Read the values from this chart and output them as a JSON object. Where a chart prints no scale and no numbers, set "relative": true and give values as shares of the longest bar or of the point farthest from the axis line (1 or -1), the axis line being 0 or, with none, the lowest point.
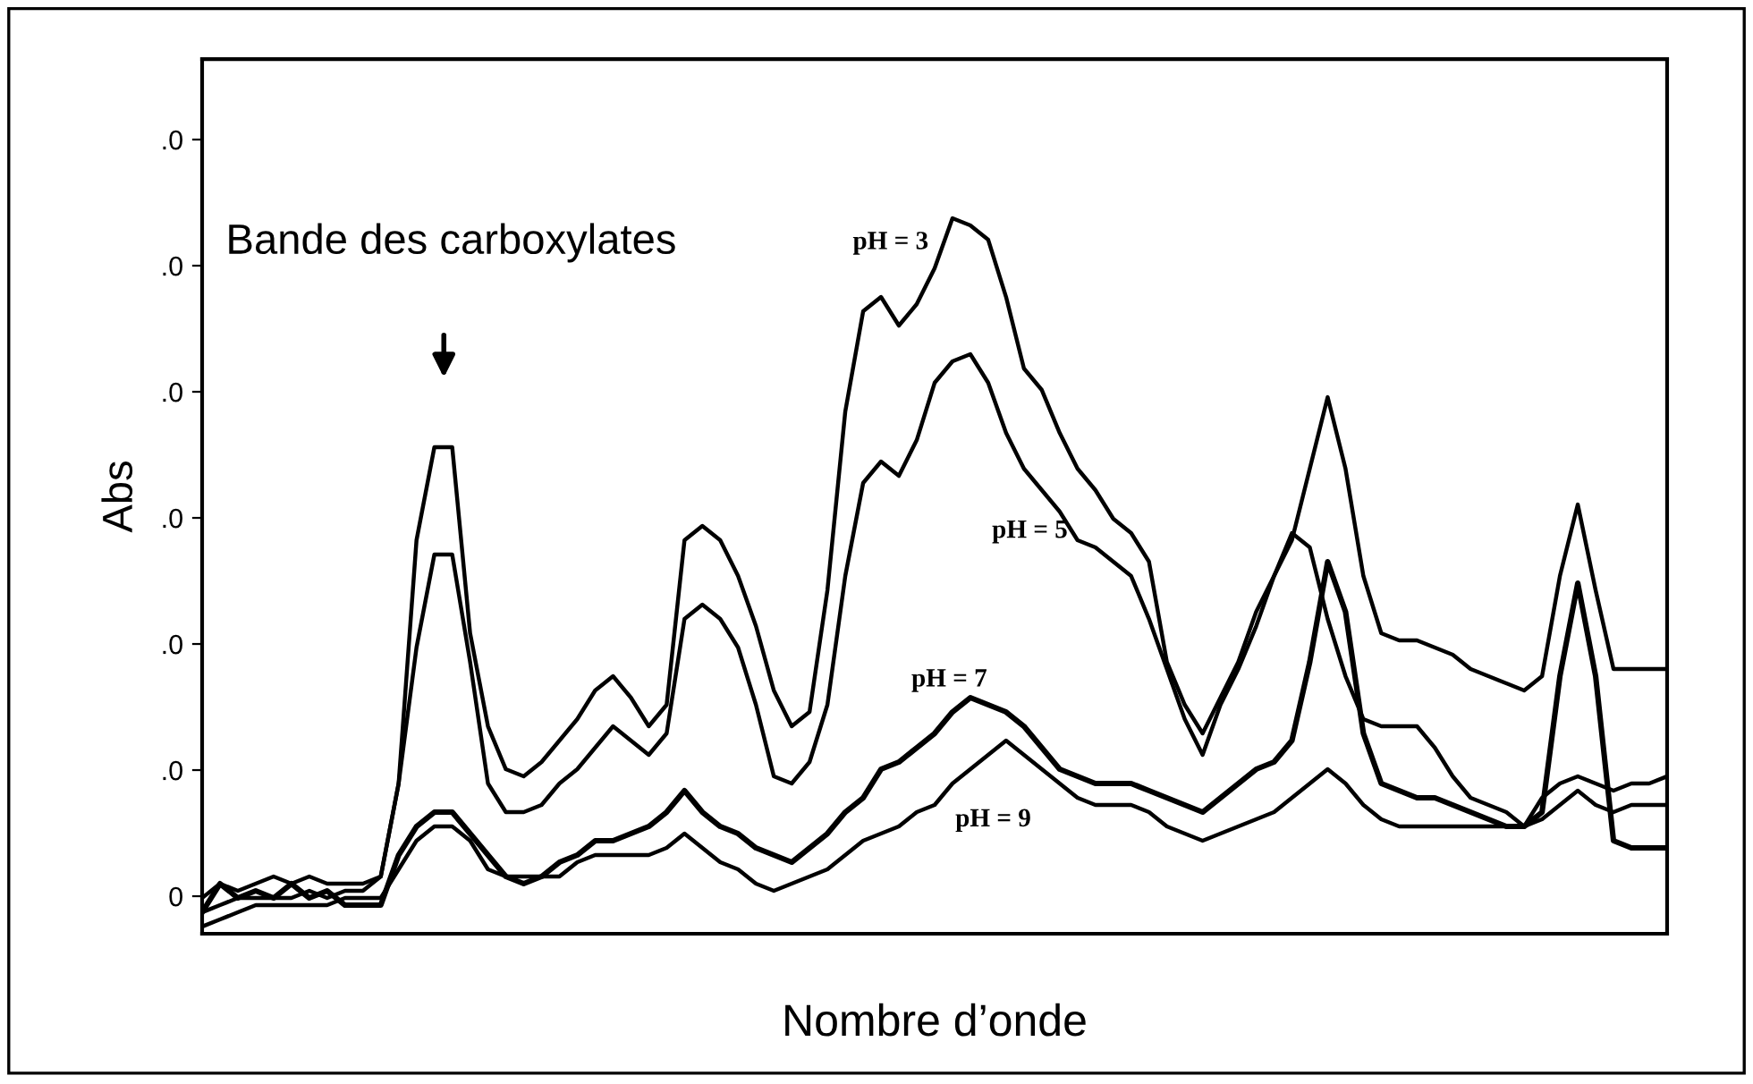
{
  "chart_data": {
    "type": "line",
    "xlabel": "Nombre d’onde",
    "ylabel": "Abs",
    "relative": true,
    "categories": [
      null,
      null,
      null,
      null,
      null,
      null,
      null,
      null,
      null,
      null,
      null,
      null,
      null,
      null,
      null,
      null,
      null,
      null,
      null,
      null,
      null,
      null,
      null,
      null,
      null,
      null,
      null,
      null,
      null,
      null,
      null,
      null,
      null,
      null,
      null,
      null,
      null,
      null,
      null,
      null,
      null,
      null,
      null,
      null,
      null,
      null,
      null,
      null,
      null,
      null,
      null,
      null,
      null,
      null,
      null,
      null,
      null,
      null,
      null,
      null,
      null,
      null,
      null,
      null,
      null,
      null,
      null,
      null,
      null,
      null,
      null,
      null,
      null,
      null,
      null,
      null,
      null,
      null,
      null,
      null,
      null,
      null,
      null
    ],
    "tick_labels": false,
    "line_style": "solid",
    "annotations": [
      "Bande des carboxylates",
      "0",
      ".0",
      ".0",
      ".0",
      ".0",
      ".0",
      ".0"
    ],
    "series": [
      {
        "name": "pH = 3",
        "color": "#000000",
        "values": [
          0.05,
          0.07,
          0.06,
          0.07,
          0.08,
          0.07,
          0.08,
          0.07,
          0.07,
          0.07,
          0.08,
          0.21,
          0.55,
          0.68,
          0.68,
          0.42,
          0.29,
          0.23,
          0.22,
          0.24,
          0.27,
          0.3,
          0.34,
          0.36,
          0.33,
          0.29,
          0.32,
          0.55,
          0.57,
          0.55,
          0.5,
          0.43,
          0.34,
          0.29,
          0.31,
          0.48,
          0.73,
          0.87,
          0.89,
          0.85,
          0.88,
          0.93,
          1.0,
          0.99,
          0.97,
          0.89,
          0.79,
          0.76,
          0.7,
          0.65,
          0.62,
          0.58,
          0.56,
          0.52,
          0.38,
          0.32,
          0.28,
          0.33,
          0.38,
          0.45,
          0.5,
          0.55,
          0.65,
          0.75,
          0.65,
          0.5,
          0.42,
          0.41,
          0.41,
          0.4,
          0.39,
          0.37,
          0.36,
          0.35,
          0.34,
          0.36,
          0.5,
          0.6,
          0.48,
          0.37,
          0.37,
          0.37,
          0.37
        ]
      },
      {
        "name": "pH = 5",
        "color": "#000000",
        "values": [
          0.03,
          0.04,
          0.05,
          0.05,
          0.05,
          0.05,
          0.06,
          0.05,
          0.06,
          0.06,
          0.08,
          0.21,
          0.4,
          0.53,
          0.53,
          0.38,
          0.21,
          0.17,
          0.17,
          0.18,
          0.21,
          0.23,
          0.26,
          0.29,
          0.27,
          0.25,
          0.28,
          0.44,
          0.46,
          0.44,
          0.4,
          0.32,
          0.22,
          0.21,
          0.24,
          0.32,
          0.5,
          0.63,
          0.66,
          0.64,
          0.69,
          0.77,
          0.8,
          0.81,
          0.77,
          0.7,
          0.65,
          0.62,
          0.59,
          0.55,
          0.54,
          0.52,
          0.5,
          0.44,
          0.37,
          0.3,
          0.25,
          0.32,
          0.37,
          0.43,
          0.5,
          0.56,
          0.54,
          0.44,
          0.36,
          0.3,
          0.29,
          0.29,
          0.29,
          0.26,
          0.22,
          0.19,
          0.18,
          0.17,
          0.15,
          0.19,
          0.21,
          0.22,
          0.21,
          0.2,
          0.21,
          0.21,
          0.22
        ]
      },
      {
        "name": "pH = 7",
        "color": "#000000",
        "values": [
          0.03,
          0.07,
          0.05,
          0.06,
          0.05,
          0.07,
          0.05,
          0.06,
          0.04,
          0.04,
          0.04,
          0.11,
          0.15,
          0.17,
          0.17,
          0.14,
          0.11,
          0.08,
          0.07,
          0.08,
          0.1,
          0.11,
          0.13,
          0.13,
          0.14,
          0.15,
          0.17,
          0.2,
          0.17,
          0.15,
          0.14,
          0.12,
          0.11,
          0.1,
          0.12,
          0.14,
          0.17,
          0.19,
          0.23,
          0.24,
          0.26,
          0.28,
          0.31,
          0.33,
          0.32,
          0.31,
          0.29,
          0.26,
          0.23,
          0.22,
          0.21,
          0.21,
          0.21,
          0.2,
          0.19,
          0.18,
          0.17,
          0.19,
          0.21,
          0.23,
          0.24,
          0.27,
          0.38,
          0.52,
          0.45,
          0.28,
          0.21,
          0.2,
          0.19,
          0.19,
          0.18,
          0.17,
          0.16,
          0.15,
          0.15,
          0.17,
          0.36,
          0.49,
          0.36,
          0.13,
          0.12,
          0.12,
          0.12
        ]
      },
      {
        "name": "pH = 9",
        "color": "#000000",
        "values": [
          0.01,
          0.02,
          0.03,
          0.04,
          0.04,
          0.04,
          0.04,
          0.04,
          0.05,
          0.05,
          0.05,
          0.09,
          0.13,
          0.15,
          0.15,
          0.13,
          0.09,
          0.08,
          0.08,
          0.08,
          0.08,
          0.1,
          0.11,
          0.11,
          0.11,
          0.11,
          0.12,
          0.14,
          0.12,
          0.1,
          0.09,
          0.07,
          0.06,
          0.07,
          0.08,
          0.09,
          0.11,
          0.13,
          0.14,
          0.15,
          0.17,
          0.18,
          0.21,
          0.23,
          0.25,
          0.27,
          0.25,
          0.23,
          0.21,
          0.19,
          0.18,
          0.18,
          0.18,
          0.17,
          0.15,
          0.14,
          0.13,
          0.14,
          0.15,
          0.16,
          0.17,
          0.19,
          0.21,
          0.23,
          0.21,
          0.18,
          0.16,
          0.15,
          0.15,
          0.15,
          0.15,
          0.15,
          0.15,
          0.15,
          0.15,
          0.16,
          0.18,
          0.2,
          0.18,
          0.17,
          0.18,
          0.18,
          0.18
        ]
      }
    ]
  }
}
